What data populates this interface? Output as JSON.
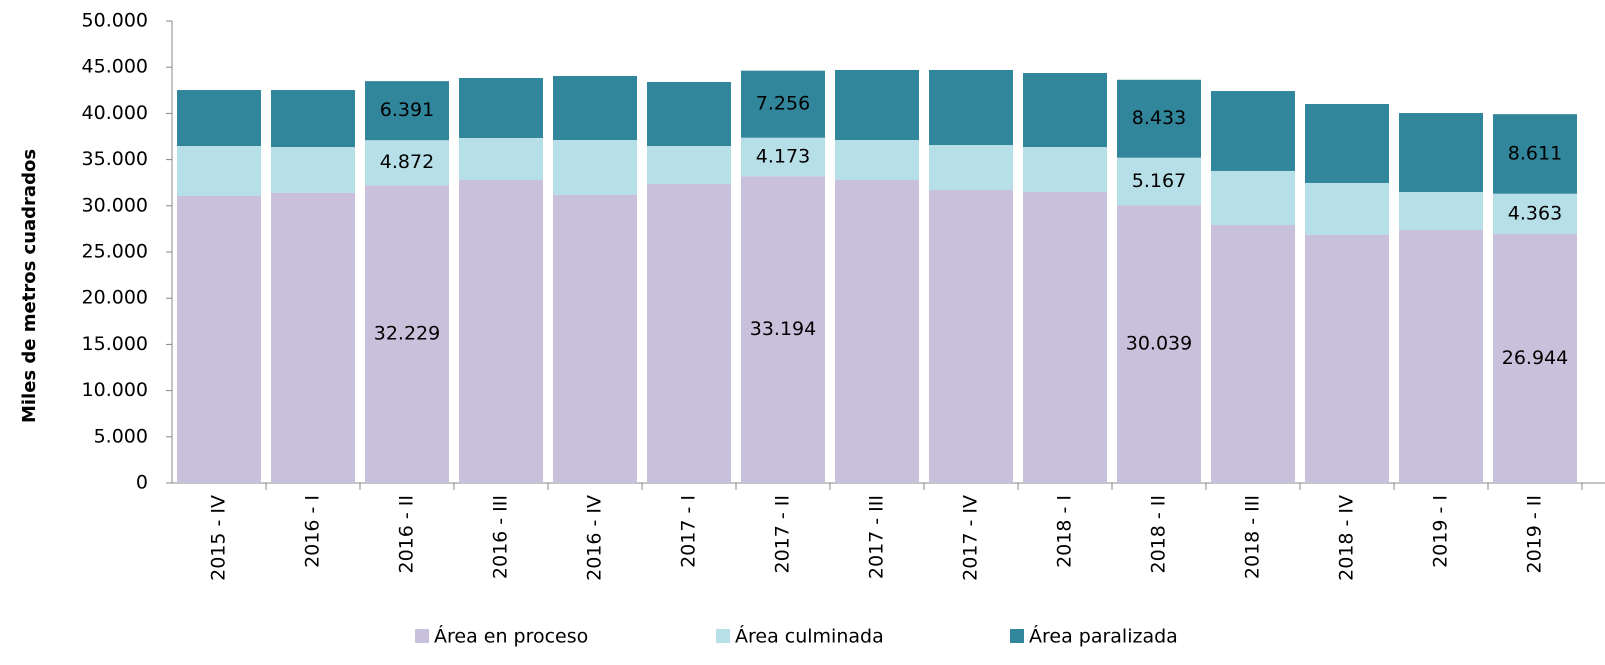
{
  "chart_data": {
    "type": "stacked_bar",
    "y_label": "Miles de metros cuadrados",
    "categories": [
      "2015 - IV",
      "2016 - I",
      "2016 - II",
      "2016 - III",
      "2016 - IV",
      "2017 - I",
      "2017 - II",
      "2017 - III",
      "2017 - IV",
      "2018 - I",
      "2018 - II",
      "2018 - III",
      "2018 - IV",
      "2019 - I",
      "2019 - II"
    ],
    "series": [
      {
        "name": "Área en proceso",
        "color": "#c9c0db",
        "values": [
          31060,
          31390,
          32229,
          32790,
          31170,
          32360,
          33194,
          32790,
          31710,
          31490,
          30039,
          27920,
          26840,
          27380,
          26944
        ],
        "value_labels": [
          null,
          null,
          "32.229",
          null,
          null,
          null,
          "33.194",
          null,
          null,
          null,
          "30.039",
          null,
          null,
          null,
          "26.944"
        ]
      },
      {
        "name": "Área culminada",
        "color": "#b7dfe8",
        "values": [
          5410,
          4970,
          4872,
          4550,
          5950,
          4110,
          4173,
          4330,
          4870,
          4870,
          5167,
          5850,
          5630,
          4110,
          4363
        ],
        "value_labels": [
          null,
          null,
          "4.872",
          null,
          null,
          null,
          "4.173",
          null,
          null,
          null,
          "5.167",
          null,
          null,
          null,
          "4.363"
        ]
      },
      {
        "name": "Área paralizada",
        "color": "#31869b",
        "values": [
          6060,
          6170,
          6391,
          6490,
          6930,
          6930,
          7256,
          7580,
          8120,
          8010,
          8433,
          8650,
          8550,
          8550,
          8611
        ],
        "value_labels": [
          null,
          null,
          "6.391",
          null,
          null,
          null,
          "7.256",
          null,
          null,
          null,
          "8.433",
          null,
          null,
          null,
          "8.611"
        ]
      }
    ],
    "ylim": [
      0,
      50000
    ],
    "yticks": [
      0,
      {
        "value": 5000,
        "label": "5.000"
      },
      {
        "value": 10000,
        "label": "10.000"
      },
      {
        "value": 15000,
        "label": "15.000"
      },
      {
        "value": 20000,
        "label": "20.000"
      },
      {
        "value": 25000,
        "label": "25.000"
      },
      {
        "value": 30000,
        "label": "30.000"
      },
      {
        "value": 35000,
        "label": "35.000"
      },
      {
        "value": 40000,
        "label": "40.000"
      },
      {
        "value": 45000,
        "label": "45.000"
      },
      {
        "value": 50000,
        "label": "50.000"
      }
    ],
    "legend": "bottom"
  }
}
